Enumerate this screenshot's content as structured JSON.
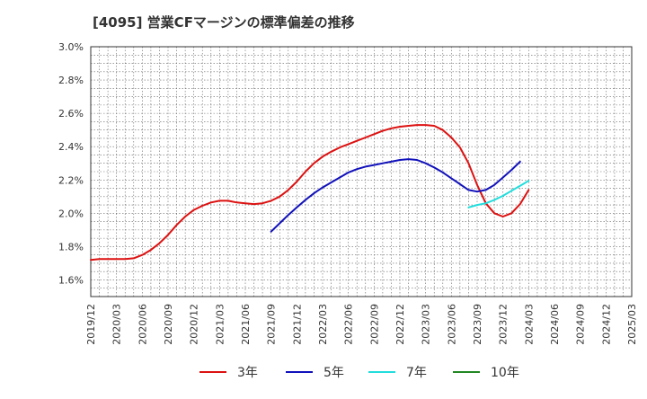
{
  "chart_data": {
    "type": "line",
    "title": "[4095]  営業CFマージンの標準偏差の推移",
    "xlabel": "",
    "ylabel": "",
    "ylim": [
      1.5,
      3.0
    ],
    "y_ticks": [
      "1.6%",
      "1.8%",
      "2.0%",
      "2.2%",
      "2.4%",
      "2.6%",
      "2.8%",
      "3.0%"
    ],
    "y_tick_values": [
      1.6,
      1.8,
      2.0,
      2.2,
      2.4,
      2.6,
      2.8,
      3.0
    ],
    "x_ticks": [
      "2019/12",
      "2020/03",
      "2020/06",
      "2020/09",
      "2020/12",
      "2021/03",
      "2021/06",
      "2021/09",
      "2021/12",
      "2022/03",
      "2022/06",
      "2022/09",
      "2022/12",
      "2023/03",
      "2023/06",
      "2023/09",
      "2023/12",
      "2024/03",
      "2024/06",
      "2024/09",
      "2024/12",
      "2025/03"
    ],
    "grid": true,
    "legend_position": "bottom",
    "series": [
      {
        "name": "3年",
        "color": "#dd1111",
        "start": "2019/12",
        "values": [
          1.72,
          1.725,
          1.725,
          1.725,
          1.725,
          1.73,
          1.75,
          1.78,
          1.82,
          1.87,
          1.93,
          1.98,
          2.02,
          2.045,
          2.065,
          2.075,
          2.075,
          2.065,
          2.06,
          2.055,
          2.06,
          2.075,
          2.1,
          2.14,
          2.19,
          2.25,
          2.3,
          2.34,
          2.37,
          2.395,
          2.415,
          2.435,
          2.455,
          2.475,
          2.495,
          2.51,
          2.52,
          2.525,
          2.53,
          2.53,
          2.525,
          2.5,
          2.455,
          2.395,
          2.3,
          2.17,
          2.06,
          2.0,
          1.98,
          2.0,
          2.055,
          2.14
        ]
      },
      {
        "name": "5年",
        "color": "#1111bb",
        "start": "2021/09",
        "values": [
          1.89,
          1.94,
          1.99,
          2.035,
          2.08,
          2.12,
          2.155,
          2.185,
          2.215,
          2.245,
          2.265,
          2.28,
          2.29,
          2.3,
          2.31,
          2.32,
          2.325,
          2.32,
          2.3,
          2.275,
          2.245,
          2.21,
          2.175,
          2.14,
          2.13,
          2.14,
          2.17,
          2.215,
          2.26,
          2.31
        ]
      },
      {
        "name": "7年",
        "color": "#22dddd",
        "start": "2023/08",
        "values": [
          2.035,
          2.05,
          2.06,
          2.08,
          2.105,
          2.135,
          2.165,
          2.195
        ]
      },
      {
        "name": "10年",
        "color": "#228822",
        "start": "2024/03",
        "values": []
      }
    ]
  }
}
